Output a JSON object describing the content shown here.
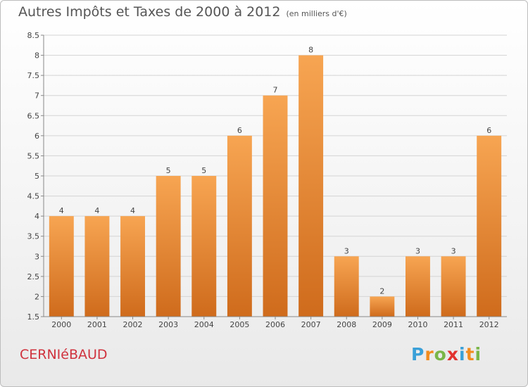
{
  "title": "Autres Impôts et Taxes de 2000 à 2012",
  "subtitle": "(en milliers d'€)",
  "town": "CERNIéBAUD",
  "logo": {
    "text": "Proxiti",
    "letters": [
      "P",
      "r",
      "o",
      "x",
      "i",
      "t",
      "i"
    ],
    "colors": [
      "#3aa0d8",
      "#f28c1e",
      "#7ab648",
      "#e2322e",
      "#3aa0d8",
      "#f28c1e",
      "#7ab648"
    ]
  },
  "colors": {
    "bar_top": "#f7a552",
    "bar_bottom": "#cf6b1c",
    "grid": "#d4d4d4",
    "town": "#d0333e"
  },
  "chart_data": {
    "type": "bar",
    "title": "Autres Impôts et Taxes de 2000 à 2012",
    "subtitle": "(en milliers d'€)",
    "categories": [
      "2000",
      "2001",
      "2002",
      "2003",
      "2004",
      "2005",
      "2006",
      "2007",
      "2008",
      "2009",
      "2010",
      "2011",
      "2012"
    ],
    "values": [
      4,
      4,
      4,
      5,
      5,
      6,
      7,
      8,
      3,
      2,
      3,
      3,
      6
    ],
    "data_labels": [
      "4",
      "4",
      "4",
      "5",
      "5",
      "6",
      "7",
      "8",
      "3",
      "2",
      "3",
      "3",
      "6"
    ],
    "ylim": [
      1.5,
      8.5
    ],
    "yticks": [
      1.5,
      2,
      2.5,
      3,
      3.5,
      4,
      4.5,
      5,
      5.5,
      6,
      6.5,
      7,
      7.5,
      8,
      8.5
    ],
    "ytick_labels": [
      "1.5",
      "2",
      "2.5",
      "3",
      "3.5",
      "4",
      "4.5",
      "5",
      "5.5",
      "6",
      "6.5",
      "7",
      "7.5",
      "8",
      "8.5"
    ],
    "grid": true,
    "legend": "none"
  }
}
